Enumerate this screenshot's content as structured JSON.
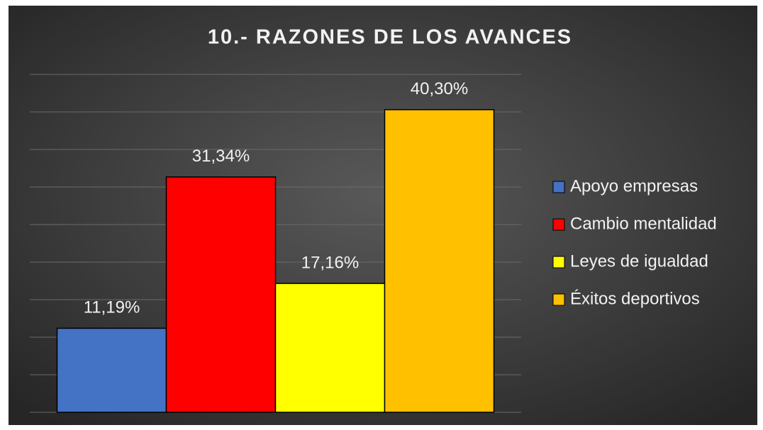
{
  "chart_data": {
    "type": "bar",
    "title": "10.- RAZONES DE LOS AVANCES",
    "categories": [
      null
    ],
    "series": [
      {
        "name": "Apoyo empresas",
        "color": "#4472c4",
        "values": [
          11.19
        ],
        "value_labels": [
          "11,19%"
        ]
      },
      {
        "name": "Cambio mentalidad",
        "color": "#ff0000",
        "values": [
          31.34
        ],
        "value_labels": [
          "31,34%"
        ]
      },
      {
        "name": "Leyes de igualdad",
        "color": "#ffff00",
        "values": [
          17.16
        ],
        "value_labels": [
          "17,16%"
        ]
      },
      {
        "name": "Éxitos deportivos",
        "color": "#ffc000",
        "values": [
          40.3
        ],
        "value_labels": [
          "40,30%"
        ]
      }
    ],
    "ylim": [
      0,
      45
    ],
    "yticks": [
      0,
      5,
      10,
      15,
      20,
      25,
      30,
      35,
      40,
      45
    ],
    "grid": true,
    "legend": "right"
  }
}
